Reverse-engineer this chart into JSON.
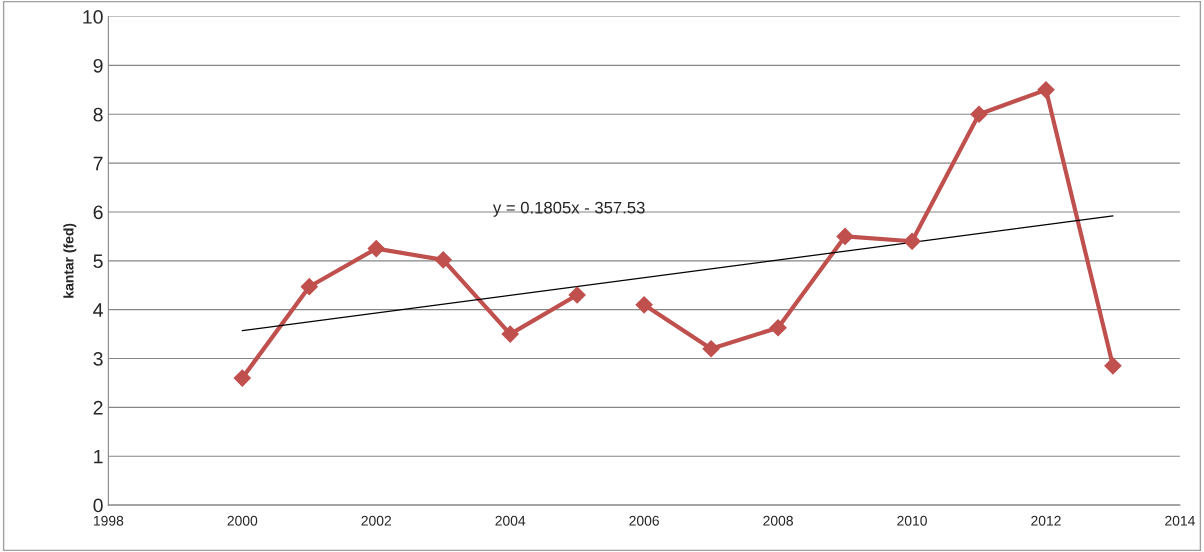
{
  "chart_data": {
    "type": "line",
    "ylabel": "kantar (fed)",
    "series": [
      {
        "color": "#c0504d",
        "x": [
          2000,
          2001,
          2002,
          2003,
          2004,
          2005
        ],
        "values": [
          2.6,
          4.47,
          5.25,
          5.02,
          3.5,
          4.3
        ],
        "marker": "diamond"
      },
      {
        "color": "#c0504d",
        "x": [
          2006,
          2007,
          2008,
          2009,
          2010,
          2011,
          2012,
          2013
        ],
        "values": [
          4.1,
          3.2,
          3.63,
          5.5,
          5.4,
          8.0,
          8.5,
          2.85
        ],
        "marker": "diamond"
      },
      {
        "color": "#000000",
        "x": [
          2000,
          2013
        ],
        "values": [
          3.57,
          5.92
        ],
        "marker": "none"
      }
    ],
    "annotations": [
      "y = 0.1805x - 357.53"
    ],
    "xlim": [
      1998,
      2014
    ],
    "xticks": [
      1998,
      2000,
      2002,
      2004,
      2006,
      2008,
      2010,
      2012,
      2014
    ],
    "ylim": [
      0,
      10
    ],
    "yticks": [
      0,
      1,
      2,
      3,
      4,
      5,
      6,
      7,
      8,
      9,
      10
    ],
    "grid": "y",
    "legend": false
  }
}
